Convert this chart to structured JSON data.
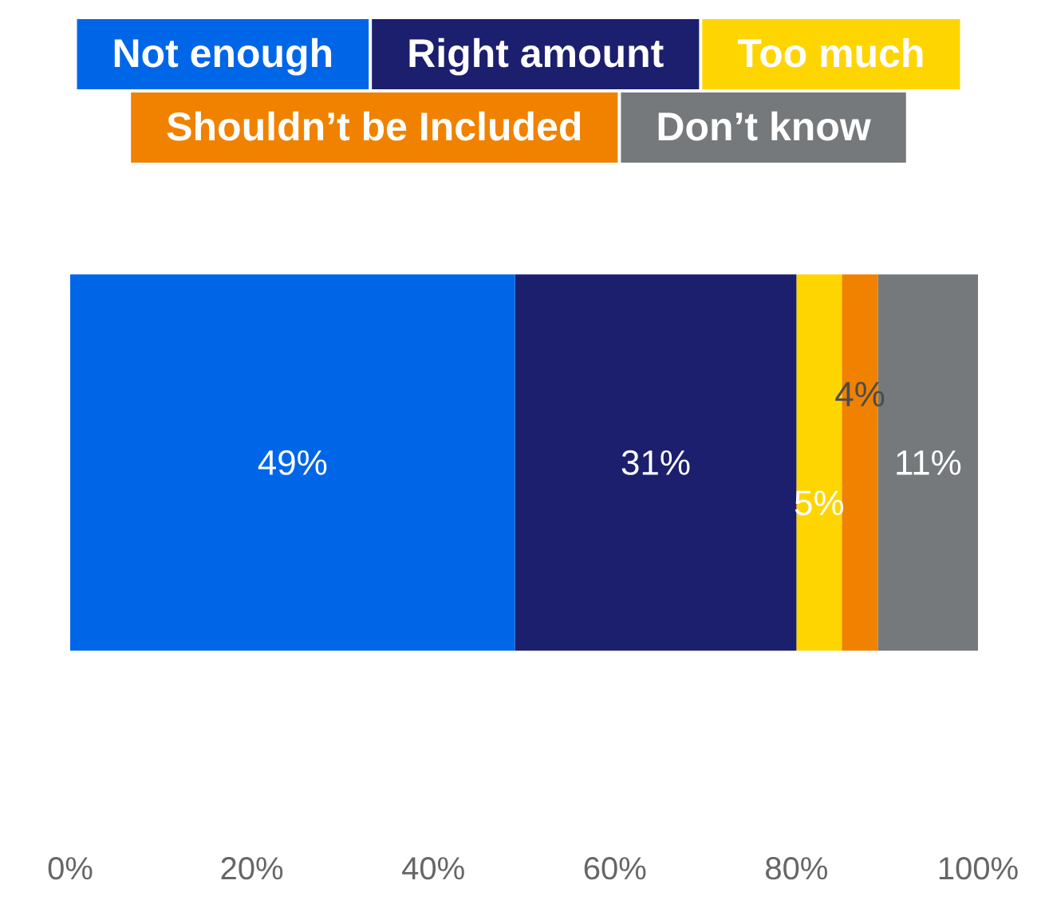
{
  "chart_data": {
    "type": "bar",
    "orientation": "horizontal",
    "stacked": true,
    "categories": [
      null
    ],
    "series": [
      {
        "name": "Not enough",
        "color": "#0066e8",
        "values": [
          49
        ],
        "value_labels": [
          "49%"
        ]
      },
      {
        "name": "Right amount",
        "color": "#1c1f6e",
        "values": [
          31
        ],
        "value_labels": [
          "31%"
        ]
      },
      {
        "name": "Too much",
        "color": "#ffd500",
        "values": [
          5
        ],
        "value_labels": [
          "5%"
        ]
      },
      {
        "name": "Shouldn’t be Included",
        "color": "#f08200",
        "values": [
          4
        ],
        "value_labels": [
          "4%"
        ]
      },
      {
        "name": "Don’t know",
        "color": "#75797c",
        "values": [
          11
        ],
        "value_labels": [
          "11%"
        ]
      }
    ],
    "xlim": [
      0,
      100
    ],
    "xticks": [
      {
        "value": 0,
        "label": "0%"
      },
      {
        "value": 20,
        "label": "20%"
      },
      {
        "value": 40,
        "label": "40%"
      },
      {
        "value": 60,
        "label": "60%"
      },
      {
        "value": 80,
        "label": "80%"
      },
      {
        "value": 100,
        "label": "100%"
      }
    ],
    "legend": "top",
    "grid": false
  }
}
